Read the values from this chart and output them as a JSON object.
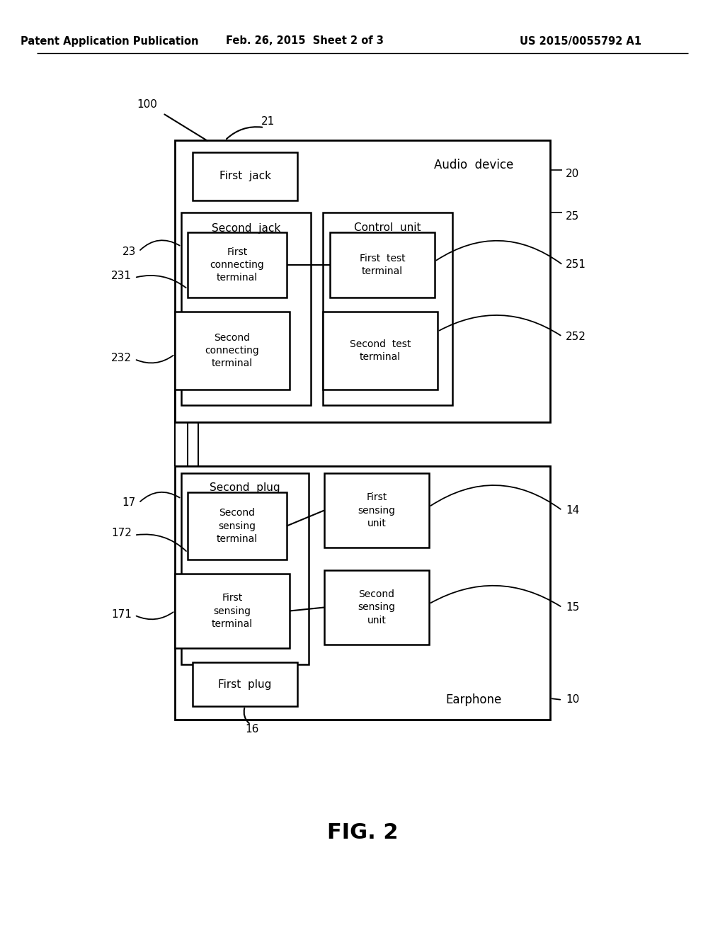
{
  "header_left": "Patent Application Publication",
  "header_mid": "Feb. 26, 2015  Sheet 2 of 3",
  "header_right": "US 2015/0055792 A1",
  "fig_label": "FIG. 2",
  "bg_color": "#ffffff",
  "line_color": "#000000",
  "font_color": "#000000",
  "text_audio_device": "Audio  device",
  "text_first_jack": "First  jack",
  "text_second_jack": "Second  jack",
  "text_control_unit": "Control  unit",
  "text_first_connecting": "First\nconnecting\nterminal",
  "text_second_connecting": "Second\nconnecting\nterminal",
  "text_first_test": "First  test\nterminal",
  "text_second_test": "Second  test\nterminal",
  "text_earphone": "Earphone",
  "text_second_plug": "Second  plug",
  "text_first_plug": "First  plug",
  "text_first_sensing_unit": "First\nsensing\nunit",
  "text_second_sensing_unit": "Second\nsensing\nunit",
  "text_second_sensing_terminal": "Second\nsensing\nterminal",
  "text_first_sensing_terminal": "First\nsensing\nterminal"
}
